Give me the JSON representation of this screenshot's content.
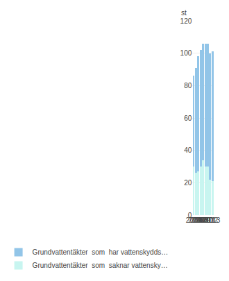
{
  "chart_data": {
    "type": "bar",
    "categories": [
      "2004",
      "2006",
      "2007",
      "2008",
      "2009",
      "2010",
      "2011",
      "2012",
      "2013"
    ],
    "series": [
      {
        "name": "Grundvattentäkter  som  saknar vattensky…",
        "color": "#c8f5f0",
        "values": [
          30,
          26,
          27,
          30,
          34,
          30,
          30,
          22,
          21
        ]
      },
      {
        "name": "Grundvattentäkter  som  har vattenskydds…",
        "color": "#92c5e8",
        "values": [
          56,
          65,
          71,
          72,
          72,
          76,
          76,
          78,
          80
        ]
      }
    ],
    "stacked": true,
    "ylabel": "st",
    "ylim": [
      0,
      120
    ],
    "yticks": [
      0,
      20,
      40,
      60,
      80,
      100,
      120
    ],
    "grid": true,
    "legend": "bottom"
  }
}
